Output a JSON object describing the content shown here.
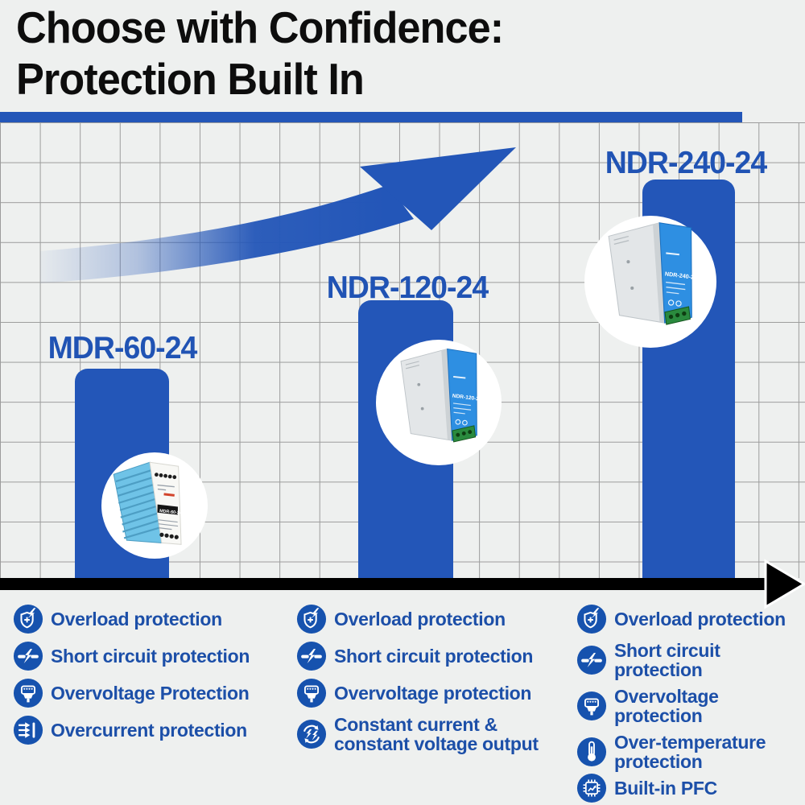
{
  "title": {
    "line1": "Choose with Confidence:",
    "line2": "Protection Built In"
  },
  "chart_data": {
    "type": "bar",
    "title": "Choose with Confidence: Protection Built In",
    "categories": [
      "MDR-60-24",
      "NDR-120-24",
      "NDR-240-24"
    ],
    "values": [
      5.3,
      7,
      10
    ],
    "value_unit": "background grid cells (relative bar heights; no numeric axis labels shown)",
    "xlabel": "",
    "ylabel": "",
    "grid": true,
    "legend": false,
    "annotations": [
      "upward curved growth swoosh arrow",
      "black x-axis arrow pointing right"
    ]
  },
  "products": [
    {
      "model": "MDR-60-24",
      "device_label": "MDR-60-24"
    },
    {
      "model": "NDR-120-24",
      "device_label": "NDR-120-24"
    },
    {
      "model": "NDR-240-24",
      "device_label": "NDR-240-24"
    }
  ],
  "features": {
    "columns": [
      {
        "product": "MDR-60-24",
        "items": [
          {
            "icon": "overload",
            "label": "Overload protection"
          },
          {
            "icon": "short-circuit",
            "label": "Short circuit protection"
          },
          {
            "icon": "overvoltage",
            "label": "Overvoltage Protection"
          },
          {
            "icon": "overcurrent",
            "label": "Overcurrent protection"
          }
        ]
      },
      {
        "product": "NDR-120-24",
        "items": [
          {
            "icon": "overload",
            "label": "Overload protection"
          },
          {
            "icon": "short-circuit",
            "label": "Short circuit protection"
          },
          {
            "icon": "overvoltage",
            "label": "Overvoltage protection"
          },
          {
            "icon": "cc-cv",
            "label": "Constant current &\nconstant voltage output"
          }
        ]
      },
      {
        "product": "NDR-240-24",
        "items": [
          {
            "icon": "overload",
            "label": "Overload protection"
          },
          {
            "icon": "short-circuit",
            "label": "Short circuit protection"
          },
          {
            "icon": "overvoltage",
            "label": "Overvoltage protection"
          },
          {
            "icon": "over-temperature",
            "label": "Over-temperature\nprotection"
          },
          {
            "icon": "built-in-pfc",
            "label": "Built-in PFC"
          }
        ]
      }
    ]
  },
  "colors": {
    "bar_blue": "#2356b8",
    "icon_blue": "#1652ae",
    "label_blue": "#2053b4",
    "feature_text_blue": "#1c4fa8",
    "axis_black": "#000000",
    "background": "#eef0ef",
    "grid_line": "#9c9c9c"
  }
}
